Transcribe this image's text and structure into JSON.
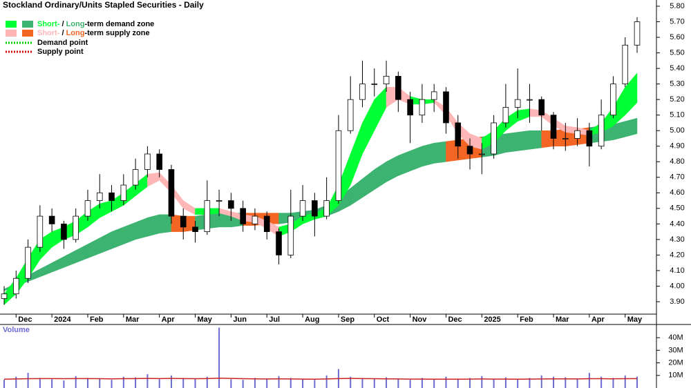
{
  "chart_data": {
    "type": "candlestick",
    "title": "Stockland Ordinary/Units Stapled Securities - Daily",
    "legend": [
      {
        "short": "Short-",
        "sep": " / ",
        "long": "Long",
        "rest": "-term demand zone",
        "short_color": "#00ff33",
        "long_color": "#3cb371"
      },
      {
        "short": "Short-",
        "sep": " / ",
        "long": "Long",
        "rest": "-term supply zone",
        "short_color": "#ffb6b6",
        "long_color": "#f26522"
      },
      {
        "label": "Demand point",
        "color": "#00cc00"
      },
      {
        "label": "Supply point",
        "color": "#cc0000"
      }
    ],
    "categories": [
      null,
      "Dec",
      null,
      null,
      "2024",
      null,
      null,
      "Feb",
      null,
      null,
      "Mar",
      null,
      null,
      "Apr",
      null,
      null,
      "May",
      null,
      null,
      "Jun",
      null,
      null,
      "Jul",
      null,
      null,
      "Aug",
      null,
      null,
      "Sep",
      null,
      null,
      "Oct",
      null,
      null,
      "Nov",
      null,
      null,
      "Dec",
      null,
      null,
      "2025",
      null,
      null,
      "Feb",
      null,
      null,
      "Mar",
      null,
      null,
      "Apr",
      null,
      null,
      "May",
      null
    ],
    "candles": [
      [
        3.92,
        4.0,
        3.88,
        3.95
      ],
      [
        3.95,
        4.1,
        3.92,
        4.05
      ],
      [
        4.05,
        4.3,
        4.02,
        4.25
      ],
      [
        4.25,
        4.52,
        4.22,
        4.45
      ],
      [
        4.45,
        4.5,
        4.35,
        4.4
      ],
      [
        4.4,
        4.42,
        4.24,
        4.3
      ],
      [
        4.3,
        4.5,
        4.28,
        4.45
      ],
      [
        4.45,
        4.62,
        4.42,
        4.55
      ],
      [
        4.55,
        4.72,
        4.5,
        4.6
      ],
      [
        4.6,
        4.65,
        4.48,
        4.55
      ],
      [
        4.55,
        4.72,
        4.52,
        4.65
      ],
      [
        4.65,
        4.82,
        4.62,
        4.75
      ],
      [
        4.75,
        4.9,
        4.7,
        4.85
      ],
      [
        4.85,
        4.88,
        4.7,
        4.75
      ],
      [
        4.75,
        4.78,
        4.4,
        4.45
      ],
      [
        4.45,
        4.5,
        4.3,
        4.38
      ],
      [
        4.38,
        4.42,
        4.28,
        4.35
      ],
      [
        4.35,
        4.68,
        4.33,
        4.55
      ],
      [
        4.55,
        4.62,
        4.45,
        4.55
      ],
      [
        4.55,
        4.6,
        4.42,
        4.5
      ],
      [
        4.5,
        4.55,
        4.35,
        4.4
      ],
      [
        4.4,
        4.5,
        4.36,
        4.45
      ],
      [
        4.45,
        4.48,
        4.3,
        4.35
      ],
      [
        4.35,
        4.37,
        4.14,
        4.2
      ],
      [
        4.2,
        4.62,
        4.18,
        4.45
      ],
      [
        4.45,
        4.65,
        4.42,
        4.55
      ],
      [
        4.55,
        4.6,
        4.32,
        4.45
      ],
      [
        4.45,
        4.7,
        4.43,
        4.55
      ],
      [
        4.55,
        5.1,
        4.53,
        5.0
      ],
      [
        5.0,
        5.35,
        4.98,
        5.2
      ],
      [
        5.2,
        5.45,
        5.15,
        5.3
      ],
      [
        5.3,
        5.4,
        5.22,
        5.3
      ],
      [
        5.3,
        5.45,
        5.25,
        5.35
      ],
      [
        5.35,
        5.38,
        5.12,
        5.2
      ],
      [
        5.2,
        5.25,
        4.92,
        5.1
      ],
      [
        5.1,
        5.3,
        5.05,
        5.2
      ],
      [
        5.2,
        5.3,
        5.12,
        5.25
      ],
      [
        5.25,
        5.28,
        4.98,
        5.05
      ],
      [
        5.05,
        5.1,
        4.82,
        4.9
      ],
      [
        4.9,
        4.95,
        4.75,
        4.85
      ],
      [
        4.85,
        4.92,
        4.72,
        4.85
      ],
      [
        4.85,
        5.1,
        4.82,
        5.05
      ],
      [
        5.05,
        5.3,
        5.02,
        5.15
      ],
      [
        5.15,
        5.4,
        5.08,
        5.2
      ],
      [
        5.2,
        5.3,
        5.05,
        5.2
      ],
      [
        5.2,
        5.22,
        5.0,
        5.1
      ],
      [
        5.1,
        5.12,
        4.88,
        4.95
      ],
      [
        4.95,
        5.05,
        4.87,
        4.95
      ],
      [
        4.95,
        5.08,
        4.9,
        5.0
      ],
      [
        5.0,
        5.05,
        4.77,
        4.9
      ],
      [
        4.9,
        5.2,
        4.88,
        5.1
      ],
      [
        5.1,
        5.35,
        5.08,
        5.3
      ],
      [
        5.3,
        5.6,
        5.28,
        5.55
      ],
      [
        5.55,
        5.73,
        5.5,
        5.7
      ]
    ],
    "short_zone": {
      "upper": [
        3.95,
        4.05,
        4.18,
        4.3,
        4.35,
        4.38,
        4.42,
        4.48,
        4.53,
        4.55,
        4.6,
        4.66,
        4.72,
        4.73,
        4.65,
        4.55,
        4.5,
        4.5,
        4.5,
        4.48,
        4.46,
        4.45,
        4.42,
        4.38,
        4.4,
        4.45,
        4.47,
        4.5,
        4.65,
        4.85,
        5.05,
        5.2,
        5.28,
        5.28,
        5.22,
        5.2,
        5.2,
        5.15,
        5.05,
        4.98,
        4.95,
        5.0,
        5.08,
        5.13,
        5.14,
        5.13,
        5.08,
        5.03,
        5.02,
        5.0,
        5.05,
        5.15,
        5.28,
        5.37
      ],
      "lower": [
        3.88,
        3.95,
        4.05,
        4.17,
        4.25,
        4.3,
        4.33,
        4.38,
        4.44,
        4.48,
        4.52,
        4.58,
        4.64,
        4.68,
        4.6,
        4.5,
        4.46,
        4.46,
        4.47,
        4.45,
        4.42,
        4.41,
        4.37,
        4.32,
        4.35,
        4.4,
        4.43,
        4.45,
        4.52,
        4.65,
        4.85,
        5.0,
        5.15,
        5.2,
        5.17,
        5.17,
        5.18,
        5.1,
        4.98,
        4.9,
        4.88,
        4.92,
        5.0,
        5.06,
        5.09,
        5.09,
        5.03,
        4.99,
        4.98,
        4.97,
        4.99,
        5.03,
        5.1,
        5.18
      ],
      "state": [
        "demand",
        "demand",
        "demand",
        "demand",
        "demand",
        "demand",
        "demand",
        "demand",
        "demand",
        "demand",
        "demand",
        "demand",
        "demand",
        "supply",
        "supply",
        "supply",
        "supply",
        "demand",
        "demand",
        "supply",
        "supply",
        "supply",
        "supply",
        "supply",
        "demand",
        "demand",
        "demand",
        "demand",
        "demand",
        "demand",
        "demand",
        "demand",
        "demand",
        "supply",
        "supply",
        "demand",
        "demand",
        "supply",
        "supply",
        "supply",
        "supply",
        "demand",
        "demand",
        "demand",
        "demand",
        "supply",
        "supply",
        "supply",
        "supply",
        "supply",
        "demand",
        "demand",
        "demand",
        "demand"
      ]
    },
    "long_zone": {
      "upper": [
        3.98,
        4.02,
        4.07,
        4.11,
        4.15,
        4.19,
        4.23,
        4.27,
        4.31,
        4.35,
        4.38,
        4.41,
        4.44,
        4.46,
        4.46,
        4.45,
        4.45,
        4.46,
        4.47,
        4.47,
        4.47,
        4.47,
        4.47,
        4.47,
        4.47,
        4.48,
        4.49,
        4.52,
        4.57,
        4.63,
        4.69,
        4.75,
        4.8,
        4.84,
        4.87,
        4.9,
        4.92,
        4.93,
        4.94,
        4.95,
        4.96,
        4.97,
        4.98,
        4.99,
        5.0,
        5.0,
        5.0,
        5.01,
        5.01,
        5.02,
        5.03,
        5.04,
        5.06,
        5.08
      ],
      "lower": [
        3.97,
        4.0,
        4.03,
        4.06,
        4.09,
        4.12,
        4.15,
        4.18,
        4.21,
        4.24,
        4.27,
        4.3,
        4.32,
        4.34,
        4.35,
        4.35,
        4.36,
        4.37,
        4.38,
        4.38,
        4.39,
        4.39,
        4.4,
        4.4,
        4.41,
        4.42,
        4.43,
        4.45,
        4.48,
        4.52,
        4.57,
        4.62,
        4.67,
        4.71,
        4.74,
        4.77,
        4.79,
        4.8,
        4.81,
        4.82,
        4.83,
        4.84,
        4.86,
        4.87,
        4.88,
        4.89,
        4.9,
        4.9,
        4.91,
        4.92,
        4.93,
        4.94,
        4.96,
        4.98
      ],
      "state": [
        "demand",
        "demand",
        "demand",
        "demand",
        "demand",
        "demand",
        "demand",
        "demand",
        "demand",
        "demand",
        "demand",
        "demand",
        "demand",
        "demand",
        "demand",
        "supply",
        "supply",
        "demand",
        "demand",
        "demand",
        "demand",
        "supply",
        "supply",
        "supply",
        "demand",
        "demand",
        "demand",
        "demand",
        "demand",
        "demand",
        "demand",
        "demand",
        "demand",
        "demand",
        "demand",
        "demand",
        "demand",
        "demand",
        "supply",
        "supply",
        "supply",
        "demand",
        "demand",
        "demand",
        "demand",
        "demand",
        "supply",
        "supply",
        "supply",
        "supply",
        "demand",
        "demand",
        "demand",
        "demand"
      ]
    },
    "ylim": [
      3.82,
      5.84
    ],
    "yticks": [
      {
        "value": 3.9,
        "label": "3.90"
      },
      {
        "value": 4.0,
        "label": "4.00"
      },
      {
        "value": 4.1,
        "label": "4.10"
      },
      {
        "value": 4.2,
        "label": "4.20"
      },
      {
        "value": 4.3,
        "label": "4.30"
      },
      {
        "value": 4.4,
        "label": "4.40"
      },
      {
        "value": 4.5,
        "label": "4.50"
      },
      {
        "value": 4.6,
        "label": "4.60"
      },
      {
        "value": 4.7,
        "label": "4.70"
      },
      {
        "value": 4.8,
        "label": "4.80"
      },
      {
        "value": 4.9,
        "label": "4.90"
      },
      {
        "value": 5.0,
        "label": "5.00"
      },
      {
        "value": 5.1,
        "label": "5.10"
      },
      {
        "value": 5.2,
        "label": "5.20"
      },
      {
        "value": 5.3,
        "label": "5.30"
      },
      {
        "value": 5.4,
        "label": "5.40"
      },
      {
        "value": 5.5,
        "label": "5.50"
      },
      {
        "value": 5.6,
        "label": "5.60"
      },
      {
        "value": 5.7,
        "label": "5.70"
      },
      {
        "value": 5.8,
        "label": "5.80"
      }
    ],
    "volume": {
      "label": "Volume",
      "color": "#6a6ad0",
      "average_color": "#cc2222",
      "values": [
        6500000,
        9000000,
        12000000,
        8000000,
        7000000,
        6000000,
        9500000,
        8000000,
        7500000,
        6500000,
        9000000,
        8500000,
        11000000,
        7000000,
        10000000,
        8000000,
        7500000,
        9000000,
        48000000,
        7000000,
        6500000,
        8000000,
        7500000,
        9500000,
        8000000,
        7000000,
        6500000,
        10000000,
        15000000,
        9000000,
        8000000,
        7500000,
        8500000,
        7000000,
        6500000,
        8000000,
        7000000,
        9000000,
        7500000,
        8000000,
        9500000,
        7000000,
        8500000,
        7000000,
        8000000,
        10000000,
        9000000,
        8500000,
        7000000,
        12000000,
        9000000,
        8000000,
        10000000,
        9000000
      ],
      "average": [
        7000000,
        7200000,
        7400000,
        7500000,
        7500000,
        7400000,
        7500000,
        7500000,
        7400000,
        7300000,
        7400000,
        7500000,
        7600000,
        7500000,
        7600000,
        7500000,
        7400000,
        7500000,
        7800000,
        7600000,
        7400000,
        7300000,
        7200000,
        7300000,
        7200000,
        7100000,
        7000000,
        7200000,
        7500000,
        7600000,
        7500000,
        7400000,
        7300000,
        7200000,
        7100000,
        7100000,
        7000000,
        7000000,
        7000000,
        7100000,
        7200000,
        7100000,
        7100000,
        7000000,
        7100000,
        7200000,
        7300000,
        7300000,
        7200000,
        7400000,
        7400000,
        7300000,
        7400000,
        7500000
      ],
      "ylim": [
        0,
        50500000
      ],
      "yticks": [
        {
          "value": 10000000,
          "label": "10M"
        },
        {
          "value": 20000000,
          "label": "20M"
        },
        {
          "value": 30000000,
          "label": "30M"
        },
        {
          "value": 40000000,
          "label": "40M"
        }
      ]
    }
  }
}
